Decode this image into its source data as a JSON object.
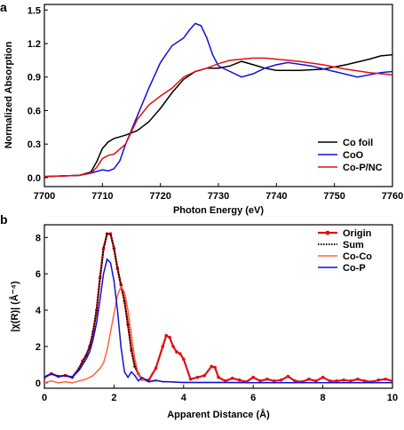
{
  "chart_data": [
    {
      "panel": "a",
      "type": "line",
      "xlabel": "Photon Energy (eV)",
      "ylabel": "Normalized Absorption",
      "xlim": [
        7700,
        7760
      ],
      "ylim": [
        -0.08,
        1.55
      ],
      "xticks": [
        "7700",
        "7710",
        "7720",
        "7730",
        "7740",
        "7750",
        "7760"
      ],
      "yticks": [
        "0.0",
        "0.3",
        "0.6",
        "0.9",
        "1.2",
        "1.5"
      ],
      "legend_position": "bottom-right",
      "series": [
        {
          "name": "Co foil",
          "color": "#000000",
          "style": "solid",
          "x": [
            7700,
            7706,
            7708,
            7709,
            7710,
            7711,
            7712,
            7714,
            7716,
            7718,
            7720,
            7722,
            7724,
            7726,
            7728,
            7730,
            7732,
            7734,
            7736,
            7738,
            7740,
            7744,
            7748,
            7752,
            7756,
            7758,
            7760
          ],
          "y": [
            0.01,
            0.02,
            0.05,
            0.14,
            0.26,
            0.32,
            0.35,
            0.38,
            0.42,
            0.5,
            0.62,
            0.76,
            0.88,
            0.95,
            0.98,
            0.98,
            1.0,
            1.04,
            1.01,
            0.98,
            0.96,
            0.96,
            0.97,
            1.01,
            1.06,
            1.09,
            1.1
          ]
        },
        {
          "name": "CoO",
          "color": "#1010e0",
          "style": "solid",
          "x": [
            7700,
            7706,
            7708,
            7710,
            7711,
            7712,
            7713,
            7714,
            7716,
            7718,
            7720,
            7722,
            7724,
            7725,
            7726,
            7727,
            7728,
            7729,
            7730,
            7732,
            7734,
            7736,
            7738,
            7740,
            7742,
            7746,
            7750,
            7754,
            7758,
            7760
          ],
          "y": [
            0.01,
            0.02,
            0.04,
            0.07,
            0.06,
            0.08,
            0.15,
            0.3,
            0.55,
            0.8,
            1.03,
            1.18,
            1.25,
            1.32,
            1.38,
            1.36,
            1.25,
            1.1,
            1.0,
            0.95,
            0.9,
            0.93,
            0.98,
            1.01,
            1.03,
            1.0,
            0.95,
            0.9,
            0.94,
            0.95
          ]
        },
        {
          "name": "Co-P/NC",
          "color": "#e01010",
          "style": "solid",
          "x": [
            7700,
            7706,
            7708,
            7709,
            7710,
            7711,
            7712,
            7714,
            7716,
            7718,
            7720,
            7722,
            7724,
            7726,
            7728,
            7730,
            7732,
            7734,
            7736,
            7738,
            7740,
            7744,
            7748,
            7752,
            7756,
            7760
          ],
          "y": [
            0.01,
            0.02,
            0.04,
            0.09,
            0.17,
            0.2,
            0.21,
            0.3,
            0.52,
            0.65,
            0.73,
            0.8,
            0.9,
            0.95,
            0.98,
            1.02,
            1.05,
            1.06,
            1.07,
            1.07,
            1.06,
            1.04,
            1.01,
            0.97,
            0.94,
            0.92
          ]
        }
      ]
    },
    {
      "panel": "b",
      "type": "line",
      "xlabel": "Apparent Distance (Å)",
      "ylabel": "|χ(R)| (Å⁻⁴)",
      "xlim": [
        0,
        10
      ],
      "ylim": [
        -0.3,
        8.7
      ],
      "xticks": [
        "0",
        "2",
        "4",
        "6",
        "8",
        "10"
      ],
      "yticks": [
        "0",
        "2",
        "4",
        "6",
        "8"
      ],
      "legend_position": "top-right",
      "series": [
        {
          "name": "Origin",
          "color": "#e01010",
          "style": "solid-markers",
          "x": [
            0,
            0.2,
            0.4,
            0.6,
            0.8,
            1.0,
            1.1,
            1.2,
            1.3,
            1.4,
            1.5,
            1.6,
            1.7,
            1.8,
            1.9,
            2.0,
            2.1,
            2.2,
            2.3,
            2.4,
            2.5,
            2.6,
            2.7,
            2.8,
            3.0,
            3.2,
            3.4,
            3.5,
            3.6,
            3.7,
            3.8,
            3.9,
            4.0,
            4.2,
            4.4,
            4.6,
            4.8,
            4.9,
            5.0,
            5.2,
            5.4,
            5.6,
            5.8,
            6.0,
            6.2,
            6.4,
            6.6,
            6.8,
            7.0,
            7.2,
            7.4,
            7.6,
            7.8,
            8.0,
            8.2,
            8.4,
            8.6,
            8.8,
            9.0,
            9.2,
            9.4,
            9.6,
            9.8,
            10.0
          ],
          "y": [
            0.3,
            0.5,
            0.35,
            0.4,
            0.3,
            0.8,
            1.2,
            1.5,
            2.0,
            2.8,
            4.0,
            5.8,
            7.4,
            8.2,
            8.2,
            7.4,
            6.3,
            5.4,
            4.5,
            3.2,
            1.8,
            0.9,
            0.5,
            0.2,
            0.15,
            0.8,
            2.0,
            2.6,
            2.5,
            2.0,
            1.7,
            1.6,
            1.3,
            0.2,
            0.3,
            0.4,
            0.9,
            0.85,
            0.3,
            0.1,
            0.25,
            0.15,
            0.05,
            0.3,
            0.1,
            0.2,
            0.1,
            0.15,
            0.35,
            0.1,
            0.05,
            0.2,
            0.1,
            0.3,
            0.1,
            0.1,
            0.15,
            0.1,
            0.2,
            0.1,
            0.05,
            0.15,
            0.2,
            0.1
          ]
        },
        {
          "name": "Sum",
          "color": "#000000",
          "style": "dotted",
          "x": [
            0,
            0.2,
            0.4,
            0.6,
            0.8,
            1.0,
            1.1,
            1.2,
            1.3,
            1.4,
            1.5,
            1.6,
            1.7,
            1.8,
            1.9,
            2.0,
            2.1,
            2.2,
            2.3,
            2.4,
            2.5,
            2.6,
            2.7,
            2.8,
            3.0
          ],
          "y": [
            0.3,
            0.5,
            0.35,
            0.4,
            0.3,
            0.8,
            1.2,
            1.5,
            2.0,
            2.8,
            4.0,
            5.8,
            7.4,
            8.2,
            8.2,
            7.4,
            6.3,
            5.4,
            4.5,
            3.2,
            1.8,
            0.9,
            0.5,
            0.2,
            0.1
          ]
        },
        {
          "name": "Co-Co",
          "color": "#ff6040",
          "style": "solid",
          "x": [
            0,
            0.2,
            0.4,
            0.6,
            0.8,
            1.0,
            1.2,
            1.4,
            1.6,
            1.7,
            1.8,
            1.9,
            2.0,
            2.1,
            2.2,
            2.3,
            2.4,
            2.5,
            2.6,
            2.7,
            2.8,
            3.0,
            3.2,
            3.6,
            4.0,
            5.0,
            6.0,
            8.0,
            10.0
          ],
          "y": [
            0.0,
            0.1,
            0.0,
            0.05,
            0.0,
            0.1,
            0.2,
            0.4,
            0.8,
            1.1,
            1.8,
            2.8,
            3.8,
            4.8,
            5.3,
            5.0,
            4.0,
            2.6,
            1.3,
            0.5,
            0.2,
            0.05,
            0.1,
            0.05,
            0.02,
            0.02,
            0.01,
            0.01,
            0.01
          ]
        },
        {
          "name": "Co-P",
          "color": "#1010e0",
          "style": "solid",
          "x": [
            0,
            0.2,
            0.4,
            0.6,
            0.8,
            1.0,
            1.1,
            1.2,
            1.3,
            1.4,
            1.5,
            1.6,
            1.7,
            1.8,
            1.9,
            2.0,
            2.1,
            2.2,
            2.3,
            2.4,
            2.5,
            2.6,
            2.7,
            2.8,
            3.0,
            3.2,
            3.4,
            3.6,
            4.0,
            5.0,
            6.0,
            8.0,
            10.0
          ],
          "y": [
            0.3,
            0.5,
            0.35,
            0.4,
            0.3,
            0.7,
            1.0,
            1.3,
            1.7,
            2.4,
            3.3,
            4.6,
            6.0,
            6.8,
            6.6,
            5.6,
            4.0,
            2.0,
            0.6,
            0.3,
            0.6,
            0.4,
            0.1,
            0.3,
            0.05,
            0.15,
            0.05,
            0.05,
            0.02,
            0.02,
            0.01,
            0.01,
            0.01
          ]
        }
      ]
    }
  ]
}
